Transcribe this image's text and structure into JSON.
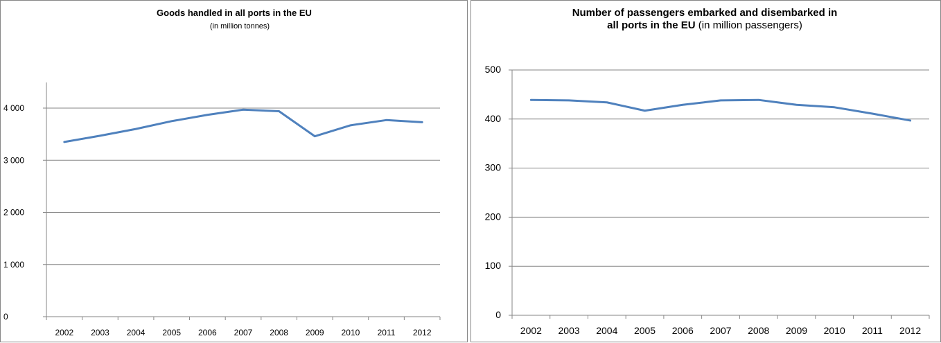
{
  "chart_data": [
    {
      "type": "line",
      "title": "Goods handled  in all ports in the EU",
      "subtitle": "(in million tonnes)",
      "categories": [
        "2002",
        "2003",
        "2004",
        "2005",
        "2006",
        "2007",
        "2008",
        "2009",
        "2010",
        "2011",
        "2012"
      ],
      "series": [
        {
          "values": [
            3350,
            3470,
            3600,
            3750,
            3870,
            3970,
            3940,
            3460,
            3670,
            3770,
            3730
          ],
          "color": "#4f81bd"
        }
      ],
      "ylim": [
        0,
        4000
      ],
      "yticks": [
        0,
        1000,
        2000,
        3000,
        4000
      ],
      "ytick_labels": [
        "0",
        "1 000",
        "2 000",
        "3 000",
        "4 000"
      ],
      "grid": true,
      "legend": "none"
    },
    {
      "type": "line",
      "title_line1": "Number of passengers embarked and disembarked in",
      "title_line2_bold": "all ports in the EU",
      "title_line2_rest": " (in million passengers)",
      "categories": [
        "2002",
        "2003",
        "2004",
        "2005",
        "2006",
        "2007",
        "2008",
        "2009",
        "2010",
        "2011",
        "2012"
      ],
      "series": [
        {
          "values": [
            439,
            438,
            434,
            417,
            429,
            438,
            439,
            429,
            424,
            411,
            397
          ],
          "color": "#4f81bd"
        }
      ],
      "ylim": [
        0,
        500
      ],
      "yticks": [
        0,
        100,
        200,
        300,
        400,
        500
      ],
      "ytick_labels": [
        "0",
        "100",
        "200",
        "300",
        "400",
        "500"
      ],
      "grid": true,
      "legend": "none"
    }
  ]
}
